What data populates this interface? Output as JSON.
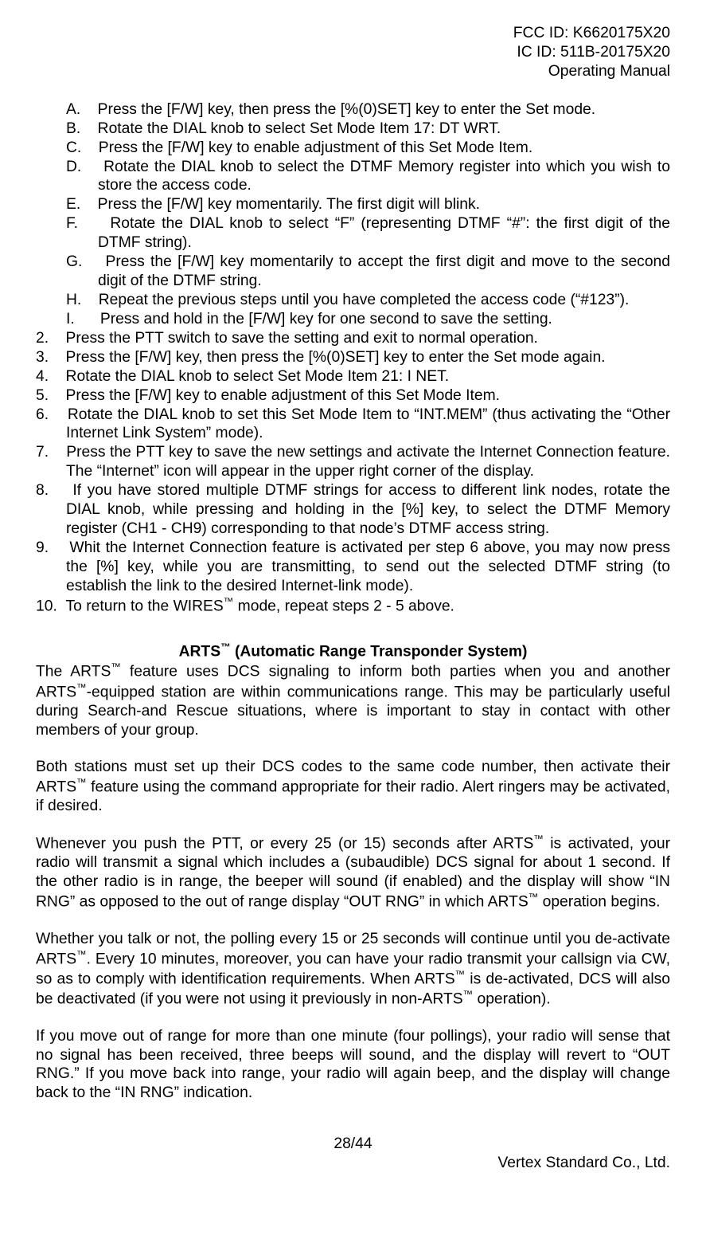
{
  "header": {
    "line1": "FCC ID: K6620175X20",
    "line2": "IC ID: 511B-20175X20",
    "line3": "Operating Manual"
  },
  "sub": {
    "A": "Press the [F/W] key, then press the [%(0)SET] key to enter the Set mode.",
    "B": "Rotate the DIAL knob to select Set Mode Item 17: DT WRT.",
    "C": "Press the [F/W] key to enable adjustment of this Set Mode Item.",
    "D": "Rotate the DIAL knob to select the DTMF Memory register into which you wish to store the access code.",
    "E": "Press the [F/W] key momentarily. The first digit will blink.",
    "F": "Rotate the DIAL knob to select “F” (representing DTMF “#”: the first digit of the DTMF string).",
    "G": "Press the [F/W] key momentarily to accept the first digit and move to the second digit of the DTMF string.",
    "H": "Repeat the previous steps until you have completed the access code (“#123”).",
    "I": "Press and hold in the [F/W] key for one second to save the setting."
  },
  "main": {
    "n2": "Press the PTT switch to save the setting and exit to normal operation.",
    "n3": "Press the [F/W] key, then press the [%(0)SET] key to enter the Set mode again.",
    "n4": "Rotate the DIAL knob to select Set Mode Item 21: I NET.",
    "n5": "Press the [F/W] key to enable adjustment of this Set Mode Item.",
    "n6": "Rotate the DIAL knob to set this Set Mode Item to “INT.MEM” (thus activating the “Other Internet Link System” mode).",
    "n7": "Press the PTT key to save the new settings and activate the Internet Connection feature. The “Internet” icon will appear in the upper right corner of the display.",
    "n8": "If you have stored multiple DTMF strings for access to different link nodes, rotate the DIAL knob, while pressing and holding in the [%] key, to select the DTMF Memory register (CH1 - CH9) corresponding to that node’s DTMF access string.",
    "n9": "Whit the Internet Connection feature is activated per step 6 above, you may now press the [%] key, while you are transmitting, to send out the selected DTMF string (to establish the link to the desired Internet-link mode).",
    "n10_pre": "To return to the WIRES",
    "n10_post": " mode, repeat steps 2 - 5 above."
  },
  "section": {
    "title_pre": "ARTS",
    "title_post": " (Automatic Range Transponder System)"
  },
  "p": {
    "p1_a": "The ARTS",
    "p1_b": " feature uses DCS signaling to inform both parties when you and another ARTS",
    "p1_c": "-equipped station are within communications range. This may be particularly useful during Search-and Rescue situations, where is important to stay in contact with other members of your group.",
    "p2_a": "Both stations must set up their DCS codes to the same code number, then activate their ARTS",
    "p2_b": " feature using the command appropriate for their radio. Alert ringers may be activated, if desired.",
    "p3_a": "Whenever you push the PTT, or every 25 (or 15) seconds after ARTS",
    "p3_b": " is activated, your radio will transmit a signal which includes a (subaudible) DCS signal for about 1 second. If the other radio is in range, the beeper will sound (if enabled) and the display will show “IN RNG” as opposed to the out of range display “OUT RNG” in which ARTS",
    "p3_c": " operation begins.",
    "p4_a": "Whether you talk or not, the polling every 15 or 25 seconds will continue until you de-activate ARTS",
    "p4_b": ". Every 10 minutes, moreover, you can have your radio transmit your callsign via CW, so as to comply with identification requirements. When ARTS",
    "p4_c": " is de-activated, DCS will also be deactivated (if you were not using it previously in non-ARTS",
    "p4_d": " operation).",
    "p5": "If you move out of range for more than one minute (four pollings), your radio will sense that no signal has been received, three beeps will sound, and the display will revert to “OUT RNG.” If you move back into range, your radio will again beep, and the display will change back to the “IN RNG” indication."
  },
  "footer": {
    "page": "28/44",
    "company": "Vertex Standard Co., Ltd."
  },
  "tm": "™"
}
